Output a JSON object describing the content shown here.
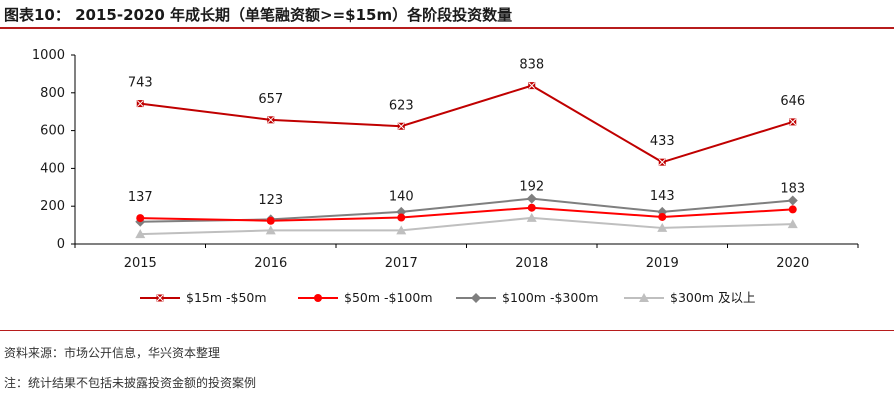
{
  "header": {
    "title": "图表10： 2015-2020 年成长期（单笔融资额>=$15m）各阶段投资数量"
  },
  "footer": {
    "source": "资料来源：市场公开信息，华兴资本整理",
    "note": "注：统计结果不包括未披露投资金额的投资案例"
  },
  "colors": {
    "accent": "#b71c1c",
    "series": [
      "#c00000",
      "#ff0000",
      "#7f7f7f",
      "#bfbfbf"
    ]
  },
  "chart_data": {
    "type": "line",
    "title": "",
    "xlabel": "",
    "ylabel": "",
    "categories": [
      "2015",
      "2016",
      "2017",
      "2018",
      "2019",
      "2020"
    ],
    "ylim": [
      0,
      1000
    ],
    "yticks": [
      0,
      200,
      400,
      600,
      800,
      1000
    ],
    "legend_position": "bottom",
    "series": [
      {
        "name": "$15m -$50m",
        "marker": "x-square",
        "values": [
          743,
          657,
          623,
          838,
          433,
          646
        ],
        "labels": [
          "743",
          "657",
          "623",
          "838",
          "433",
          "646"
        ]
      },
      {
        "name": "$50m -$100m",
        "marker": "circle",
        "values": [
          137,
          123,
          140,
          192,
          143,
          183
        ],
        "labels": [
          "137",
          "123",
          "140",
          "192",
          "143",
          "183"
        ]
      },
      {
        "name": "$100m -$300m",
        "marker": "diamond",
        "values": [
          118,
          130,
          170,
          240,
          170,
          230
        ],
        "labels": []
      },
      {
        "name": "$300m 及以上",
        "marker": "triangle",
        "values": [
          52,
          72,
          72,
          138,
          85,
          105
        ],
        "labels": []
      }
    ]
  }
}
